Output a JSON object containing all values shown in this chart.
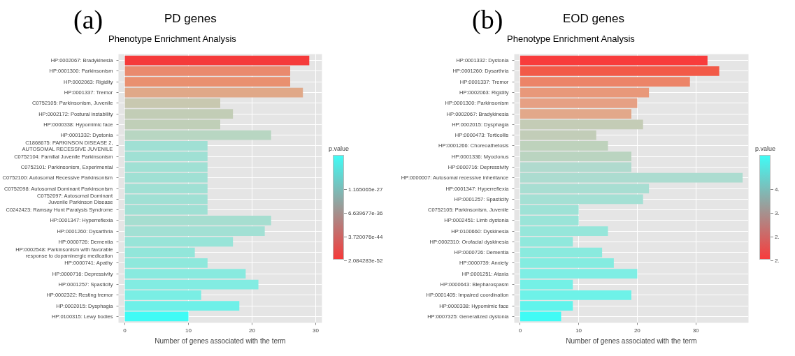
{
  "chart_data": [
    {
      "type": "bar",
      "orientation": "horizontal",
      "title": "PD genes",
      "subtitle": "Phenotype Enrichment Analysis",
      "annotations": [
        "(a)",
        "p.value",
        "1.165065e-27",
        "6.639677e-36",
        "3.720076e-44",
        "2.084283e-52"
      ],
      "xlabel": "Number of genes associated with the term",
      "categories": [
        "HP:0002067: Bradykinesia",
        "HP:0001300: Parkinsonism",
        "HP:0002063: Rigidity",
        "HP:0001337: Tremor",
        "C0752105: Parkinsonism, Juvenile",
        "HP:0002172: Postural instability",
        "HP:0000338: Hypomimic face",
        "HP:0001332: Dystonia",
        "C1868675: PARKINSON DISEASE 2, AUTOSOMAL RECESSIVE JUVENILE",
        "C0752104: Familial Juvenile Parkinsonism",
        "C0752101: Parkinsonism, Experimental",
        "C0752100: Autosomal Recessive Parkinsonism",
        "C0752098: Autosomal Dominant Parkinsonism",
        "C0752097: Autosomal Dominant Juvenile Parkinson Disease",
        "C0242423: Ramsay Hunt Paralysis Syndrome",
        "HP:0001347: Hyperreflexia",
        "HP:0001260: Dysarthria",
        "HP:0000726: Dementia",
        "HP:0002548: Parkinsonism with favorable response to dopaminergic medication",
        "HP:0000741: Apathy",
        "HP:0000716: Depressivity",
        "HP:0001257: Spasticity",
        "HP:0002322: Resting tremor",
        "HP:0002015: Dysphagia",
        "HP:0100315: Lewy bodies"
      ],
      "values": [
        29,
        26,
        26,
        28,
        15,
        17,
        15,
        23,
        13,
        13,
        13,
        13,
        13,
        13,
        13,
        23,
        22,
        17,
        11,
        13,
        19,
        21,
        12,
        18,
        10
      ],
      "colors": [
        "#f53a3a",
        "#e98a6e",
        "#e99070",
        "#e0a888",
        "#c8c8b0",
        "#c2cdb6",
        "#c0cfb8",
        "#b8d6c2",
        "#a0e0d4",
        "#a0e0d4",
        "#a0e0d4",
        "#a0e0d4",
        "#a0e0d4",
        "#a0e0d4",
        "#a0e0d4",
        "#a6ded0",
        "#a2e0d4",
        "#98e4d8",
        "#92e6da",
        "#8ee8dc",
        "#88eadf",
        "#82ece2",
        "#7aeee4",
        "#6ef0e8",
        "#40fbf5"
      ],
      "xlim": [
        -1,
        31
      ],
      "xticks": [
        0,
        10,
        20,
        30
      ],
      "grid": true
    },
    {
      "type": "bar",
      "orientation": "horizontal",
      "title": "EOD genes",
      "subtitle": "Phenotype Enrichment Analysis",
      "annotations": [
        "(b)",
        "p.value",
        "4.",
        "3.",
        "2.",
        "2."
      ],
      "xlabel": "Number of genes associated with the term",
      "categories": [
        "HP:0001332: Dystonia",
        "HP:0001260: Dysarthria",
        "HP:0001337: Tremor",
        "HP:0002063: Rigidity",
        "HP:0001300: Parkinsonism",
        "HP:0002067: Bradykinesia",
        "HP:0002015: Dysphagia",
        "HP:0000473: Torticollis",
        "HP:0001266: Choreoathetosis",
        "HP:0001336: Myoclonus",
        "HP:0000716: Depressivity",
        "HP:0000007: Autosomal recessive inheritance",
        "HP:0001347: Hyperreflexia",
        "HP:0001257: Spasticity",
        "C0752105: Parkinsonism, Juvenile",
        "HP:0002451: Limb dystonia",
        "HP:0100660: Dyskinesia",
        "HP:0002310: Orofacial dyskinesia",
        "HP:0000726: Dementia",
        "HP:0000739: Anxiety",
        "HP:0001251: Ataxia",
        "HP:0000643: Blepharospasm",
        "HP:0001405: Impaired coordination",
        "HP:0000338: Hypomimic face",
        "HP:0007325: Generalized dystonia"
      ],
      "values": [
        32,
        34,
        29,
        22,
        20,
        19,
        21,
        13,
        15,
        19,
        19,
        38,
        22,
        21,
        10,
        10,
        15,
        9,
        14,
        16,
        20,
        9,
        19,
        9,
        7
      ],
      "colors": [
        "#f83c3c",
        "#f25a48",
        "#ec8468",
        "#e8987a",
        "#e6a084",
        "#e2a88a",
        "#c4ccb6",
        "#c2cdb8",
        "#bed2bc",
        "#bad4c0",
        "#b0dace",
        "#acdcd0",
        "#a8ded2",
        "#a4e0d4",
        "#9ee2d6",
        "#9ae4d8",
        "#96e6da",
        "#90e8dc",
        "#8aeade",
        "#84ece0",
        "#7eeee4",
        "#74f0e6",
        "#6ef2e8",
        "#60f4ec",
        "#40fbf5"
      ],
      "xlim": [
        -1,
        39
      ],
      "xticks": [
        0,
        10,
        20,
        30
      ],
      "grid": true
    }
  ]
}
